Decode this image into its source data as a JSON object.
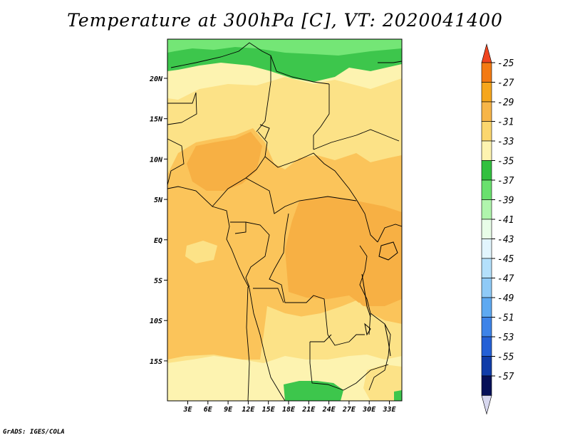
{
  "title": "Temperature at 300hPa [C], VT: 2020041400",
  "credit": "GrADS: IGES/COLA",
  "map": {
    "lon_ticks": [
      "3E",
      "6E",
      "9E",
      "12E",
      "15E",
      "18E",
      "21E",
      "24E",
      "27E",
      "30E",
      "33E"
    ],
    "lat_ticks": [
      "20N",
      "15N",
      "10N",
      "5N",
      "EQ",
      "5S",
      "10S",
      "15S"
    ],
    "colors": {
      "c35": "#fdf3b0",
      "c33": "#fce287",
      "c31": "#fbc45a",
      "c29": "#f7b044",
      "g37": "#3dc64c",
      "g39": "#74e676"
    }
  },
  "colorbar": {
    "labels": [
      "-25",
      "-27",
      "-29",
      "-31",
      "-33",
      "-35",
      "-37",
      "-39",
      "-41",
      "-43",
      "-45",
      "-47",
      "-49",
      "-51",
      "-53",
      "-55",
      "-57"
    ],
    "colors": [
      "#f0451f",
      "#f37a12",
      "#f6a61c",
      "#f7b548",
      "#fbd66e",
      "#fdf3b0",
      "#32c03f",
      "#6ae06e",
      "#b0f5ad",
      "#e8fde8",
      "#e2f5fd",
      "#b4e0fb",
      "#8fcaf7",
      "#5ea9f1",
      "#3d83e8",
      "#2460d6",
      "#103ca8",
      "#061058",
      "#d8d8ef"
    ]
  }
}
